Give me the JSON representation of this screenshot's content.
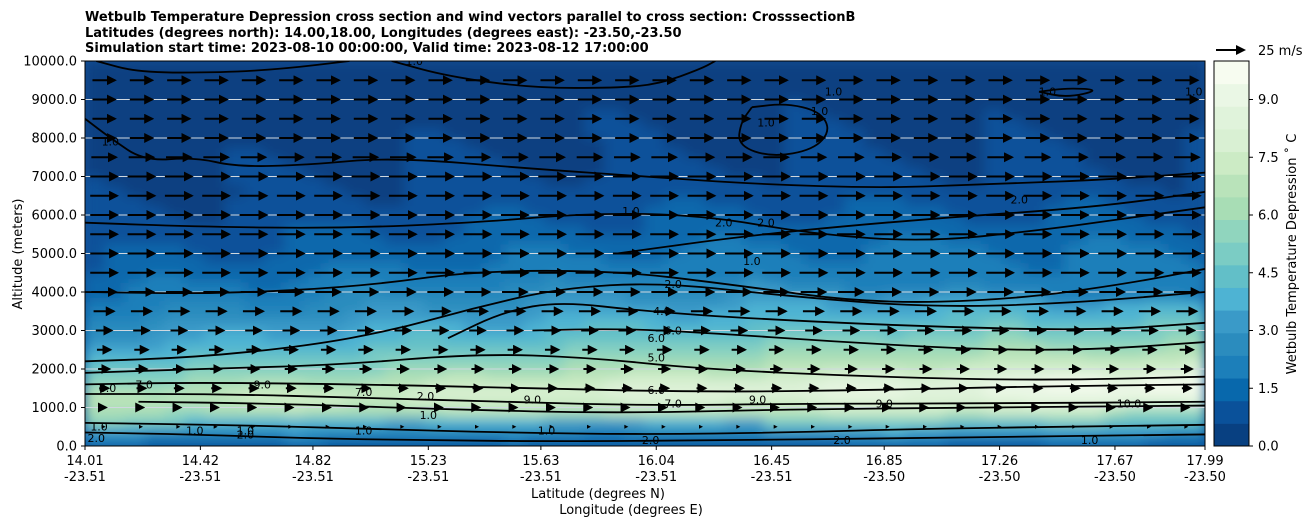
{
  "chart_data": {
    "type": "contour",
    "title": [
      "Wetbulb Temperature Depression cross section and wind vectors parallel to cross section: CrosssectionB",
      "Latitudes (degrees north): 14.00,18.00, Longitudes (degrees east): -23.50,-23.50",
      "Simulation start time: 2023-08-10 00:00:00, Valid time: 2023-08-12 17:00:00"
    ],
    "ylabel": "Altitude (meters)",
    "xlabel_lat": "Latitude (degrees N)",
    "xlabel_lon": "Longitude (degrees E)",
    "ylim": [
      0,
      10000
    ],
    "xlim": [
      14.01,
      17.99
    ],
    "y_ticks": [
      "0.0",
      "1000.0",
      "2000.0",
      "3000.0",
      "4000.0",
      "5000.0",
      "6000.0",
      "7000.0",
      "8000.0",
      "9000.0",
      "10000.0"
    ],
    "x_ticks": [
      {
        "lat": 14.01,
        "lat_label": "14.01",
        "lon_label": "-23.51"
      },
      {
        "lat": 14.42,
        "lat_label": "14.42",
        "lon_label": "-23.51"
      },
      {
        "lat": 14.82,
        "lat_label": "14.82",
        "lon_label": "-23.51"
      },
      {
        "lat": 15.23,
        "lat_label": "15.23",
        "lon_label": "-23.51"
      },
      {
        "lat": 15.63,
        "lat_label": "15.63",
        "lon_label": "-23.51"
      },
      {
        "lat": 16.04,
        "lat_label": "16.04",
        "lon_label": "-23.51"
      },
      {
        "lat": 16.45,
        "lat_label": "16.45",
        "lon_label": "-23.51"
      },
      {
        "lat": 16.85,
        "lat_label": "16.85",
        "lon_label": "-23.50"
      },
      {
        "lat": 17.26,
        "lat_label": "17.26",
        "lon_label": "-23.50"
      },
      {
        "lat": 17.67,
        "lat_label": "17.67",
        "lon_label": "-23.50"
      },
      {
        "lat": 17.99,
        "lat_label": "17.99",
        "lon_label": "-23.50"
      }
    ],
    "colorbar": {
      "label": "Wetbulb Temperature Depression $^\\circ$C",
      "label_text": "Wetbulb Temperature Depression ˚ C",
      "min": 0.0,
      "max": 10.0,
      "ticks": [
        "0.0",
        "1.5",
        "3.0",
        "4.5",
        "6.0",
        "7.5",
        "9.0"
      ],
      "colors": [
        "#084081",
        "#0a519a",
        "#0868ac",
        "#1c7fba",
        "#2b8cbe",
        "#3a9ac8",
        "#4eb3d3",
        "#62bfc8",
        "#7bccc4",
        "#90d5be",
        "#a8ddb5",
        "#b9e3ba",
        "#ccebc5",
        "#d9f0d3",
        "#e0f3db",
        "#eaf7e5",
        "#f7fcf0"
      ]
    },
    "wind_reference": {
      "label": "25 m/s",
      "speed": 25
    },
    "wind_vectors": {
      "direction": "positive x (northward along section)",
      "y_levels": [
        9500,
        9000,
        8500,
        8000,
        7500,
        7000,
        6500,
        6000,
        5500,
        5000,
        4500,
        4000,
        3500,
        3000,
        2500,
        2000,
        1500,
        1000,
        500
      ],
      "speed_by_level": [
        20,
        20,
        20,
        20,
        22,
        24,
        24,
        24,
        24,
        24,
        24,
        22,
        18,
        14,
        12,
        10,
        8,
        4,
        2
      ]
    },
    "contour_labels": [
      {
        "text": "1.0",
        "lat": 15.95,
        "alt": 6000
      },
      {
        "text": "2.0",
        "lat": 16.1,
        "alt": 4100
      },
      {
        "text": "4.0",
        "lat": 16.06,
        "alt": 3400
      },
      {
        "text": "6.0",
        "lat": 16.1,
        "alt": 2900
      },
      {
        "text": "6.0",
        "lat": 16.04,
        "alt": 2700
      },
      {
        "text": "5.0",
        "lat": 16.04,
        "alt": 2200
      },
      {
        "text": "7.0",
        "lat": 16.1,
        "alt": 1000
      },
      {
        "text": "6.0",
        "lat": 16.04,
        "alt": 1350
      },
      {
        "text": "7.0",
        "lat": 15.0,
        "alt": 1300
      },
      {
        "text": "2.0",
        "lat": 15.22,
        "alt": 1200
      },
      {
        "text": "1.0",
        "lat": 15.0,
        "alt": 300
      },
      {
        "text": "1.0",
        "lat": 14.4,
        "alt": 300
      },
      {
        "text": "1.0",
        "lat": 15.23,
        "alt": 700
      },
      {
        "text": "1.0",
        "lat": 15.65,
        "alt": 300
      },
      {
        "text": "2.0",
        "lat": 16.02,
        "alt": 50
      },
      {
        "text": "2.0",
        "lat": 16.7,
        "alt": 50
      },
      {
        "text": "1.0",
        "lat": 17.58,
        "alt": 50
      },
      {
        "text": "1.0",
        "lat": 15.18,
        "alt": 9900
      },
      {
        "text": "1.0",
        "lat": 16.67,
        "alt": 9100
      },
      {
        "text": "1.0",
        "lat": 17.43,
        "alt": 9100
      },
      {
        "text": "1.0",
        "lat": 17.95,
        "alt": 9100
      },
      {
        "text": "1.0",
        "lat": 16.43,
        "alt": 8300
      },
      {
        "text": "1.0",
        "lat": 16.62,
        "alt": 8600
      },
      {
        "text": "1.0",
        "lat": 14.1,
        "alt": 7800
      },
      {
        "text": "2.0",
        "lat": 16.28,
        "alt": 5700
      },
      {
        "text": "2.0",
        "lat": 16.43,
        "alt": 5700
      },
      {
        "text": "1.0",
        "lat": 16.38,
        "alt": 4700
      },
      {
        "text": "2.0",
        "lat": 17.33,
        "alt": 6300
      },
      {
        "text": "8.0",
        "lat": 14.09,
        "alt": 1400
      },
      {
        "text": "7.0",
        "lat": 14.22,
        "alt": 1500
      },
      {
        "text": "9.0",
        "lat": 14.64,
        "alt": 1500
      },
      {
        "text": "9.0",
        "lat": 16.4,
        "alt": 1100
      },
      {
        "text": "9.0",
        "lat": 16.85,
        "alt": 1000
      },
      {
        "text": "9.0",
        "lat": 15.6,
        "alt": 1100
      },
      {
        "text": "10.0",
        "lat": 17.72,
        "alt": 1000
      },
      {
        "text": "2.0",
        "lat": 14.05,
        "alt": 100
      },
      {
        "text": "1.0",
        "lat": 14.06,
        "alt": 400
      },
      {
        "text": "1.0",
        "lat": 14.58,
        "alt": 300
      },
      {
        "text": "2.0",
        "lat": 14.58,
        "alt": 200
      }
    ],
    "contours": [
      {
        "level": 1.0,
        "points": [
          [
            14.01,
            8500
          ],
          [
            14.1,
            8000
          ],
          [
            14.22,
            7400
          ],
          [
            14.4,
            7500
          ],
          [
            14.55,
            7250
          ],
          [
            14.8,
            7300
          ],
          [
            15.1,
            7500
          ],
          [
            15.6,
            7200
          ],
          [
            16.0,
            7000
          ],
          [
            16.4,
            6800
          ],
          [
            16.85,
            6700
          ],
          [
            17.2,
            6800
          ],
          [
            17.6,
            6900
          ],
          [
            17.99,
            7100
          ]
        ]
      },
      {
        "level": 1.0,
        "points": [
          [
            14.05,
            10000
          ],
          [
            14.2,
            9700
          ],
          [
            14.5,
            9700
          ],
          [
            14.72,
            9800
          ],
          [
            14.95,
            10000
          ]
        ]
      },
      {
        "level": 1.0,
        "points": [
          [
            15.1,
            10000
          ],
          [
            15.3,
            9600
          ],
          [
            15.6,
            9300
          ],
          [
            15.9,
            9300
          ],
          [
            16.05,
            9400
          ],
          [
            16.2,
            9800
          ],
          [
            16.25,
            10000
          ]
        ]
      },
      {
        "level": 1.0,
        "points": [
          [
            16.38,
            8800
          ],
          [
            16.5,
            8900
          ],
          [
            16.62,
            8700
          ],
          [
            16.66,
            8200
          ],
          [
            16.6,
            7700
          ],
          [
            16.45,
            7500
          ],
          [
            16.33,
            7800
          ],
          [
            16.34,
            8400
          ],
          [
            16.38,
            8800
          ]
        ]
      },
      {
        "level": 1.0,
        "points": [
          [
            17.4,
            9200
          ],
          [
            17.5,
            9300
          ],
          [
            17.62,
            9250
          ],
          [
            17.5,
            9050
          ],
          [
            17.4,
            9200
          ]
        ]
      },
      {
        "level": 1.0,
        "points": [
          [
            14.01,
            5800
          ],
          [
            14.4,
            5700
          ],
          [
            14.9,
            5650
          ],
          [
            15.4,
            5800
          ],
          [
            15.8,
            6050
          ],
          [
            16.2,
            6000
          ],
          [
            16.6,
            5500
          ],
          [
            17.0,
            5300
          ],
          [
            17.4,
            5600
          ],
          [
            17.7,
            5900
          ],
          [
            17.99,
            6200
          ]
        ]
      },
      {
        "level": 1.0,
        "points": [
          [
            14.01,
            4000
          ],
          [
            14.5,
            3950
          ],
          [
            15.0,
            4150
          ],
          [
            15.4,
            4550
          ],
          [
            15.9,
            4550
          ],
          [
            16.3,
            4200
          ],
          [
            16.8,
            3700
          ],
          [
            17.3,
            3800
          ],
          [
            17.7,
            4200
          ],
          [
            17.99,
            4600
          ]
        ]
      },
      {
        "level": 2.0,
        "points": [
          [
            14.01,
            2200
          ],
          [
            14.4,
            2300
          ],
          [
            14.8,
            2600
          ],
          [
            15.1,
            3000
          ],
          [
            15.4,
            3600
          ],
          [
            15.7,
            4100
          ],
          [
            16.05,
            4250
          ],
          [
            16.5,
            3900
          ],
          [
            17.0,
            3600
          ],
          [
            17.5,
            3700
          ],
          [
            17.99,
            4000
          ]
        ]
      },
      {
        "level": 2.0,
        "points": [
          [
            15.9,
            5000
          ],
          [
            16.4,
            5500
          ],
          [
            17.0,
            5900
          ],
          [
            17.6,
            6200
          ],
          [
            17.99,
            6600
          ]
        ]
      },
      {
        "level": 4.0,
        "points": [
          [
            15.3,
            2800
          ],
          [
            15.5,
            3500
          ],
          [
            15.7,
            3750
          ],
          [
            16.0,
            3500
          ],
          [
            16.4,
            3300
          ],
          [
            17.0,
            3100
          ],
          [
            17.6,
            3000
          ],
          [
            17.99,
            3200
          ]
        ]
      },
      {
        "level": 5.0,
        "points": [
          [
            14.01,
            1900
          ],
          [
            14.4,
            2000
          ],
          [
            14.9,
            2100
          ],
          [
            15.4,
            2400
          ],
          [
            15.8,
            2300
          ],
          [
            16.2,
            2000
          ],
          [
            16.8,
            1800
          ],
          [
            17.4,
            1700
          ],
          [
            17.99,
            1800
          ]
        ]
      },
      {
        "level": 6.0,
        "points": [
          [
            15.6,
            3000
          ],
          [
            15.9,
            3050
          ],
          [
            16.2,
            2950
          ],
          [
            16.7,
            2700
          ],
          [
            17.2,
            2500
          ],
          [
            17.6,
            2500
          ],
          [
            17.99,
            2700
          ]
        ]
      },
      {
        "level": 6.0,
        "points": [
          [
            14.01,
            1600
          ],
          [
            14.4,
            1650
          ],
          [
            15.0,
            1600
          ],
          [
            15.6,
            1500
          ],
          [
            16.2,
            1400
          ],
          [
            16.8,
            1450
          ],
          [
            17.4,
            1550
          ],
          [
            17.99,
            1600
          ]
        ]
      },
      {
        "level": 7.0,
        "points": [
          [
            14.01,
            1350
          ],
          [
            14.5,
            1350
          ],
          [
            15.0,
            1250
          ],
          [
            15.5,
            1150
          ],
          [
            16.0,
            1050
          ],
          [
            16.6,
            1100
          ],
          [
            17.2,
            1100
          ],
          [
            17.99,
            1150
          ]
        ]
      },
      {
        "level": 9.0,
        "points": [
          [
            14.2,
            1150
          ],
          [
            14.7,
            1100
          ],
          [
            15.3,
            950
          ],
          [
            15.9,
            850
          ],
          [
            16.5,
            950
          ],
          [
            17.2,
            1000
          ],
          [
            17.99,
            1050
          ]
        ]
      },
      {
        "level": 1.0,
        "points": [
          [
            14.01,
            600
          ],
          [
            14.5,
            550
          ],
          [
            15.0,
            450
          ],
          [
            15.5,
            350
          ],
          [
            16.0,
            300
          ],
          [
            16.5,
            350
          ],
          [
            17.0,
            450
          ],
          [
            17.5,
            500
          ],
          [
            17.99,
            550
          ]
        ]
      },
      {
        "level": 2.0,
        "points": [
          [
            14.01,
            350
          ],
          [
            14.4,
            300
          ],
          [
            14.8,
            200
          ],
          [
            15.2,
            150
          ],
          [
            15.7,
            120
          ],
          [
            16.3,
            150
          ],
          [
            16.9,
            200
          ],
          [
            17.4,
            250
          ],
          [
            17.99,
            300
          ]
        ]
      }
    ]
  }
}
